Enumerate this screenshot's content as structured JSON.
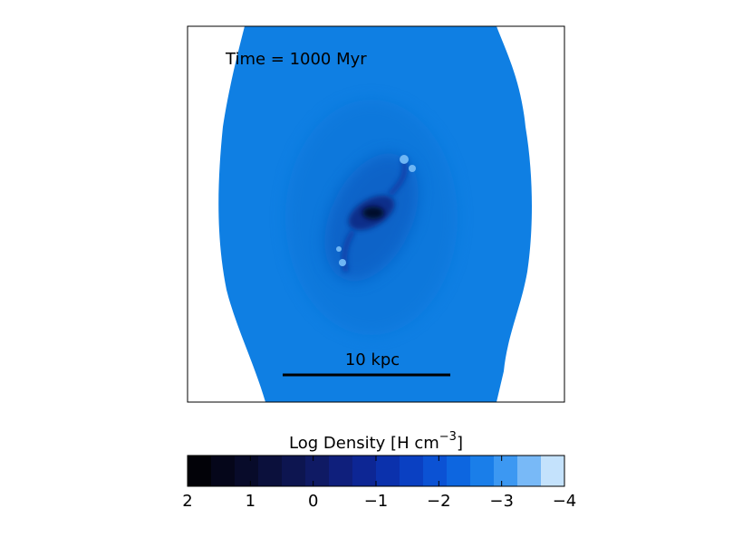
{
  "panel": {
    "time_label": "Time = 1000 Myr",
    "scale_label": "10 kpc"
  },
  "colorbar": {
    "label": {
      "text": "Log Density [H cm",
      "sup": "−3",
      "close": "]"
    },
    "lim": [
      2,
      -4
    ],
    "ticks": [
      2,
      1,
      0,
      {
        "value": -1,
        "label": "−1"
      },
      {
        "value": -2,
        "label": "−2"
      },
      {
        "value": -3,
        "label": "−3"
      },
      {
        "value": -4,
        "label": "−4"
      }
    ],
    "colors": [
      "#020208",
      "#05061a",
      "#080b2a",
      "#0b103c",
      "#0d1550",
      "#0f1a64",
      "#0f1f7c",
      "#0d2694",
      "#0b31ac",
      "#0a40c2",
      "#0b52d4",
      "#0d66e0",
      "#1a7ee9",
      "#3c98f2",
      "#78b9f7",
      "#c4e2fc"
    ]
  }
}
